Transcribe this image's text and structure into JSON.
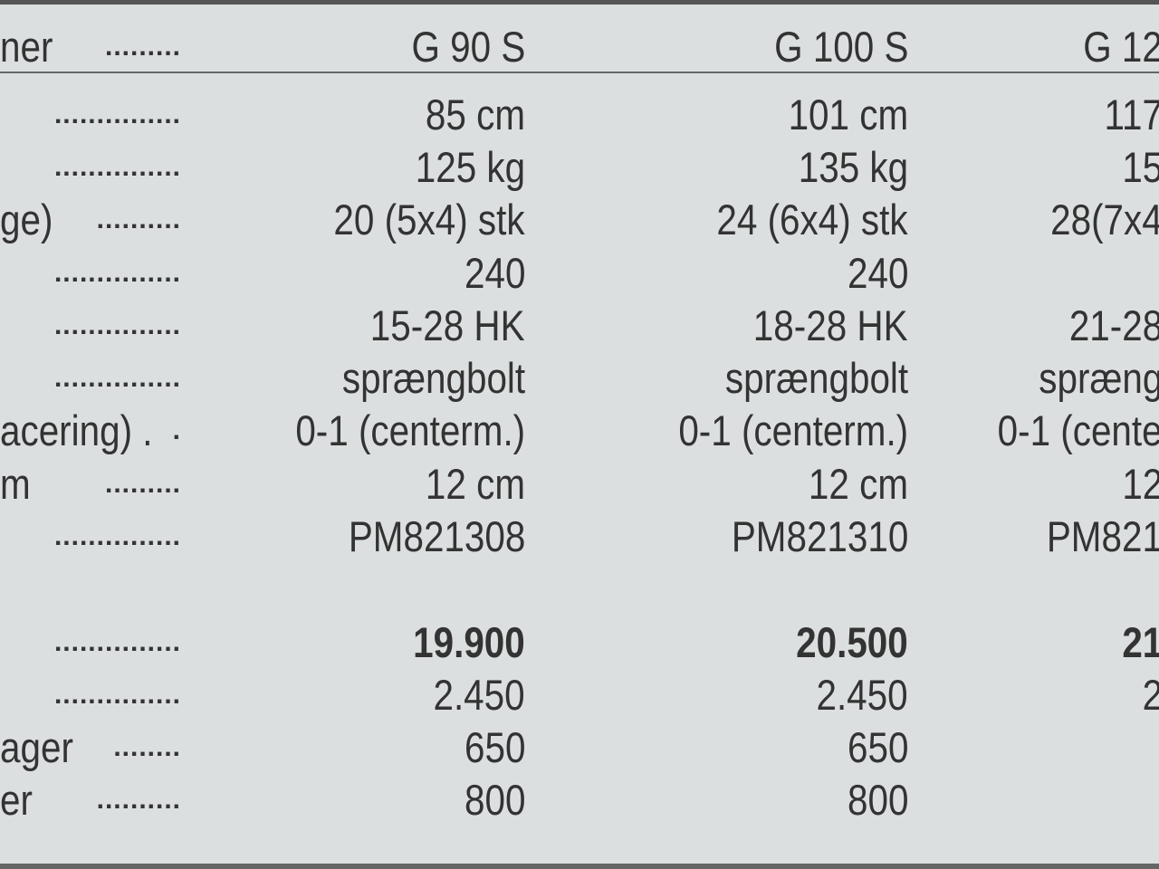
{
  "header": {
    "label": "ner",
    "columns": [
      "G 90 S",
      "G 100 S",
      "G 12"
    ]
  },
  "rows": [
    {
      "label": "",
      "values": [
        "85 cm",
        "101 cm",
        "117"
      ]
    },
    {
      "label": "",
      "values": [
        "125 kg",
        "135 kg",
        "15"
      ]
    },
    {
      "label": "ge)",
      "values": [
        "20 (5x4) stk",
        "24 (6x4) stk",
        "28(7x4"
      ]
    },
    {
      "label": "",
      "values": [
        "240",
        "240",
        ""
      ]
    },
    {
      "label": "",
      "values": [
        "15-28 HK",
        "18-28 HK",
        "21-28"
      ]
    },
    {
      "label": "",
      "values": [
        "sprængbolt",
        "sprængbolt",
        "spræng"
      ]
    },
    {
      "label": "acering) .",
      "values": [
        "0-1 (centerm.)",
        "0-1 (centerm.)",
        "0-1 (cente"
      ]
    },
    {
      "label": "m",
      "values": [
        "12 cm",
        "12 cm",
        "12"
      ]
    },
    {
      "label": "",
      "values": [
        "PM821308",
        "PM821310",
        "PM821"
      ]
    },
    {
      "label": "",
      "values": [
        "19.900",
        "20.500",
        "21"
      ],
      "bold": true
    },
    {
      "label": "",
      "values": [
        "2.450",
        "2.450",
        "2"
      ]
    },
    {
      "label": "ager",
      "values": [
        "650",
        "650",
        ""
      ]
    },
    {
      "label": "er",
      "values": [
        "800",
        "800",
        ""
      ]
    }
  ]
}
